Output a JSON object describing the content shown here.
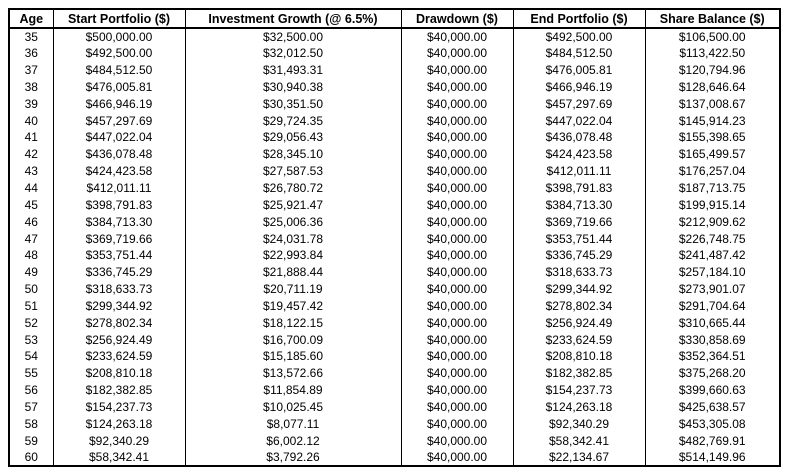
{
  "table": {
    "headers": [
      "Age",
      "Start Portfolio ($)",
      "Investment Growth (@ 6.5%)",
      "Drawdown ($)",
      "End Portfolio ($)",
      "Share Balance ($)"
    ],
    "rows": [
      [
        "35",
        "$500,000.00",
        "$32,500.00",
        "$40,000.00",
        "$492,500.00",
        "$106,500.00"
      ],
      [
        "36",
        "$492,500.00",
        "$32,012.50",
        "$40,000.00",
        "$484,512.50",
        "$113,422.50"
      ],
      [
        "37",
        "$484,512.50",
        "$31,493.31",
        "$40,000.00",
        "$476,005.81",
        "$120,794.96"
      ],
      [
        "38",
        "$476,005.81",
        "$30,940.38",
        "$40,000.00",
        "$466,946.19",
        "$128,646.64"
      ],
      [
        "39",
        "$466,946.19",
        "$30,351.50",
        "$40,000.00",
        "$457,297.69",
        "$137,008.67"
      ],
      [
        "40",
        "$457,297.69",
        "$29,724.35",
        "$40,000.00",
        "$447,022.04",
        "$145,914.23"
      ],
      [
        "41",
        "$447,022.04",
        "$29,056.43",
        "$40,000.00",
        "$436,078.48",
        "$155,398.65"
      ],
      [
        "42",
        "$436,078.48",
        "$28,345.10",
        "$40,000.00",
        "$424,423.58",
        "$165,499.57"
      ],
      [
        "43",
        "$424,423.58",
        "$27,587.53",
        "$40,000.00",
        "$412,011.11",
        "$176,257.04"
      ],
      [
        "44",
        "$412,011.11",
        "$26,780.72",
        "$40,000.00",
        "$398,791.83",
        "$187,713.75"
      ],
      [
        "45",
        "$398,791.83",
        "$25,921.47",
        "$40,000.00",
        "$384,713.30",
        "$199,915.14"
      ],
      [
        "46",
        "$384,713.30",
        "$25,006.36",
        "$40,000.00",
        "$369,719.66",
        "$212,909.62"
      ],
      [
        "47",
        "$369,719.66",
        "$24,031.78",
        "$40,000.00",
        "$353,751.44",
        "$226,748.75"
      ],
      [
        "48",
        "$353,751.44",
        "$22,993.84",
        "$40,000.00",
        "$336,745.29",
        "$241,487.42"
      ],
      [
        "49",
        "$336,745.29",
        "$21,888.44",
        "$40,000.00",
        "$318,633.73",
        "$257,184.10"
      ],
      [
        "50",
        "$318,633.73",
        "$20,711.19",
        "$40,000.00",
        "$299,344.92",
        "$273,901.07"
      ],
      [
        "51",
        "$299,344.92",
        "$19,457.42",
        "$40,000.00",
        "$278,802.34",
        "$291,704.64"
      ],
      [
        "52",
        "$278,802.34",
        "$18,122.15",
        "$40,000.00",
        "$256,924.49",
        "$310,665.44"
      ],
      [
        "53",
        "$256,924.49",
        "$16,700.09",
        "$40,000.00",
        "$233,624.59",
        "$330,858.69"
      ],
      [
        "54",
        "$233,624.59",
        "$15,185.60",
        "$40,000.00",
        "$208,810.18",
        "$352,364.51"
      ],
      [
        "55",
        "$208,810.18",
        "$13,572.66",
        "$40,000.00",
        "$182,382.85",
        "$375,268.20"
      ],
      [
        "56",
        "$182,382.85",
        "$11,854.89",
        "$40,000.00",
        "$154,237.73",
        "$399,660.63"
      ],
      [
        "57",
        "$154,237.73",
        "$10,025.45",
        "$40,000.00",
        "$124,263.18",
        "$425,638.57"
      ],
      [
        "58",
        "$124,263.18",
        "$8,077.11",
        "$40,000.00",
        "$92,340.29",
        "$453,305.08"
      ],
      [
        "59",
        "$92,340.29",
        "$6,002.12",
        "$40,000.00",
        "$58,342.41",
        "$482,769.91"
      ],
      [
        "60",
        "$58,342.41",
        "$3,792.26",
        "$40,000.00",
        "$22,134.67",
        "$514,149.96"
      ]
    ]
  },
  "chart_data": {
    "type": "table",
    "columns": [
      "Age",
      "Start Portfolio ($)",
      "Investment Growth (@ 6.5%)",
      "Drawdown ($)",
      "End Portfolio ($)",
      "Share Balance ($)"
    ],
    "rows": [
      [
        35,
        500000.0,
        32500.0,
        40000.0,
        492500.0,
        106500.0
      ],
      [
        36,
        492500.0,
        32012.5,
        40000.0,
        484512.5,
        113422.5
      ],
      [
        37,
        484512.5,
        31493.31,
        40000.0,
        476005.81,
        120794.96
      ],
      [
        38,
        476005.81,
        30940.38,
        40000.0,
        466946.19,
        128646.64
      ],
      [
        39,
        466946.19,
        30351.5,
        40000.0,
        457297.69,
        137008.67
      ],
      [
        40,
        457297.69,
        29724.35,
        40000.0,
        447022.04,
        145914.23
      ],
      [
        41,
        447022.04,
        29056.43,
        40000.0,
        436078.48,
        155398.65
      ],
      [
        42,
        436078.48,
        28345.1,
        40000.0,
        424423.58,
        165499.57
      ],
      [
        43,
        424423.58,
        27587.53,
        40000.0,
        412011.11,
        176257.04
      ],
      [
        44,
        412011.11,
        26780.72,
        40000.0,
        398791.83,
        187713.75
      ],
      [
        45,
        398791.83,
        25921.47,
        40000.0,
        384713.3,
        199915.14
      ],
      [
        46,
        384713.3,
        25006.36,
        40000.0,
        369719.66,
        212909.62
      ],
      [
        47,
        369719.66,
        24031.78,
        40000.0,
        353751.44,
        226748.75
      ],
      [
        48,
        353751.44,
        22993.84,
        40000.0,
        336745.29,
        241487.42
      ],
      [
        49,
        336745.29,
        21888.44,
        40000.0,
        318633.73,
        257184.1
      ],
      [
        50,
        318633.73,
        20711.19,
        40000.0,
        299344.92,
        273901.07
      ],
      [
        51,
        299344.92,
        19457.42,
        40000.0,
        278802.34,
        291704.64
      ],
      [
        52,
        278802.34,
        18122.15,
        40000.0,
        256924.49,
        310665.44
      ],
      [
        53,
        256924.49,
        16700.09,
        40000.0,
        233624.59,
        330858.69
      ],
      [
        54,
        233624.59,
        15185.6,
        40000.0,
        208810.18,
        352364.51
      ],
      [
        55,
        208810.18,
        13572.66,
        40000.0,
        182382.85,
        375268.2
      ],
      [
        56,
        182382.85,
        11854.89,
        40000.0,
        154237.73,
        399660.63
      ],
      [
        57,
        154237.73,
        10025.45,
        40000.0,
        124263.18,
        425638.57
      ],
      [
        58,
        124263.18,
        8077.11,
        40000.0,
        92340.29,
        453305.08
      ],
      [
        59,
        92340.29,
        6002.12,
        40000.0,
        58342.41,
        482769.91
      ],
      [
        60,
        58342.41,
        3792.26,
        40000.0,
        22134.67,
        514149.96
      ]
    ],
    "title": "",
    "layout_hints": {
      "grid": "vertical column separators only, thick outer and header borders",
      "text_color": "#000000",
      "background": "#ffffff"
    }
  }
}
